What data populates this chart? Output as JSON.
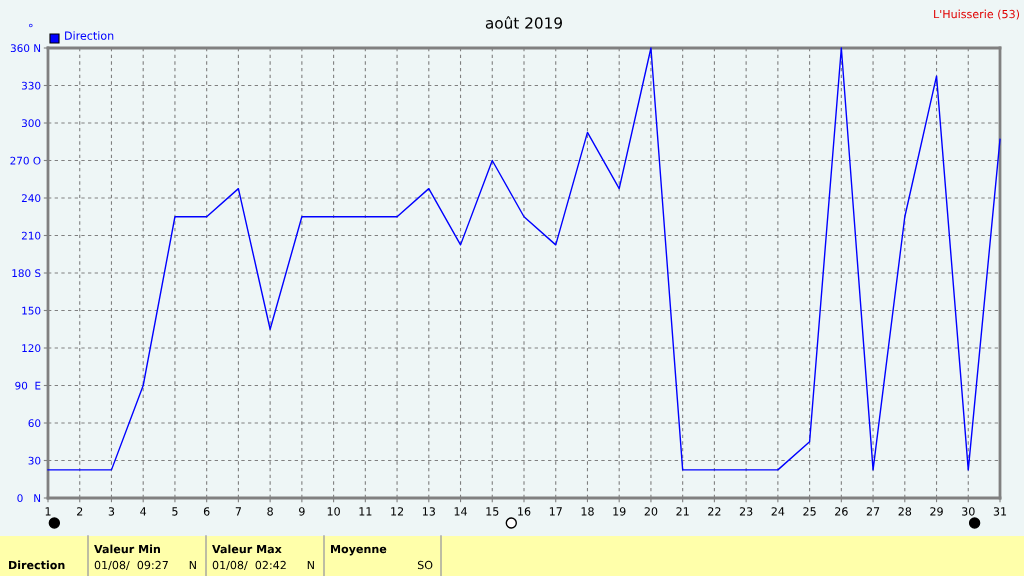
{
  "chart_data": {
    "type": "line",
    "title": "août 2019",
    "ylabel": "°",
    "x": [
      1,
      2,
      3,
      4,
      5,
      6,
      7,
      8,
      9,
      10,
      11,
      12,
      13,
      14,
      15,
      16,
      17,
      18,
      19,
      20,
      21,
      22,
      23,
      24,
      25,
      26,
      27,
      28,
      29,
      30,
      31
    ],
    "series": [
      {
        "name": "Direction",
        "color": "#0000ff",
        "values": [
          22.5,
          22.5,
          22.5,
          90,
          225,
          225,
          247.5,
          135,
          225,
          225,
          225,
          225,
          247.5,
          202.5,
          270,
          225,
          202.5,
          292.5,
          247.5,
          360,
          22.5,
          22.5,
          22.5,
          22.5,
          45,
          360,
          22.5,
          225,
          337.5,
          22.5,
          287
        ]
      }
    ],
    "xlim": [
      1,
      31
    ],
    "xticks": [
      1,
      2,
      3,
      4,
      5,
      6,
      7,
      8,
      9,
      10,
      11,
      12,
      13,
      14,
      15,
      16,
      17,
      18,
      19,
      20,
      21,
      22,
      23,
      24,
      25,
      26,
      27,
      28,
      29,
      30,
      31
    ],
    "ylim": [
      0,
      360
    ],
    "yticks": [
      {
        "value": 0,
        "label": "0   N"
      },
      30,
      60,
      {
        "value": 90,
        "label": "90  E"
      },
      120,
      150,
      {
        "value": 180,
        "label": "180 S"
      },
      210,
      240,
      {
        "value": 270,
        "label": "270 O"
      },
      300,
      330,
      {
        "value": 360,
        "label": "360 N"
      }
    ],
    "grid": true,
    "legend": "top left",
    "marker": "none",
    "line_style": "solid",
    "annotations": [
      "L'Huisserie (53)",
      "Direction",
      "Valeur Min",
      "01/08/  09:27",
      "N",
      "Valeur Max",
      "01/08/  02:42",
      "N",
      "Moyenne",
      "SO"
    ]
  }
}
